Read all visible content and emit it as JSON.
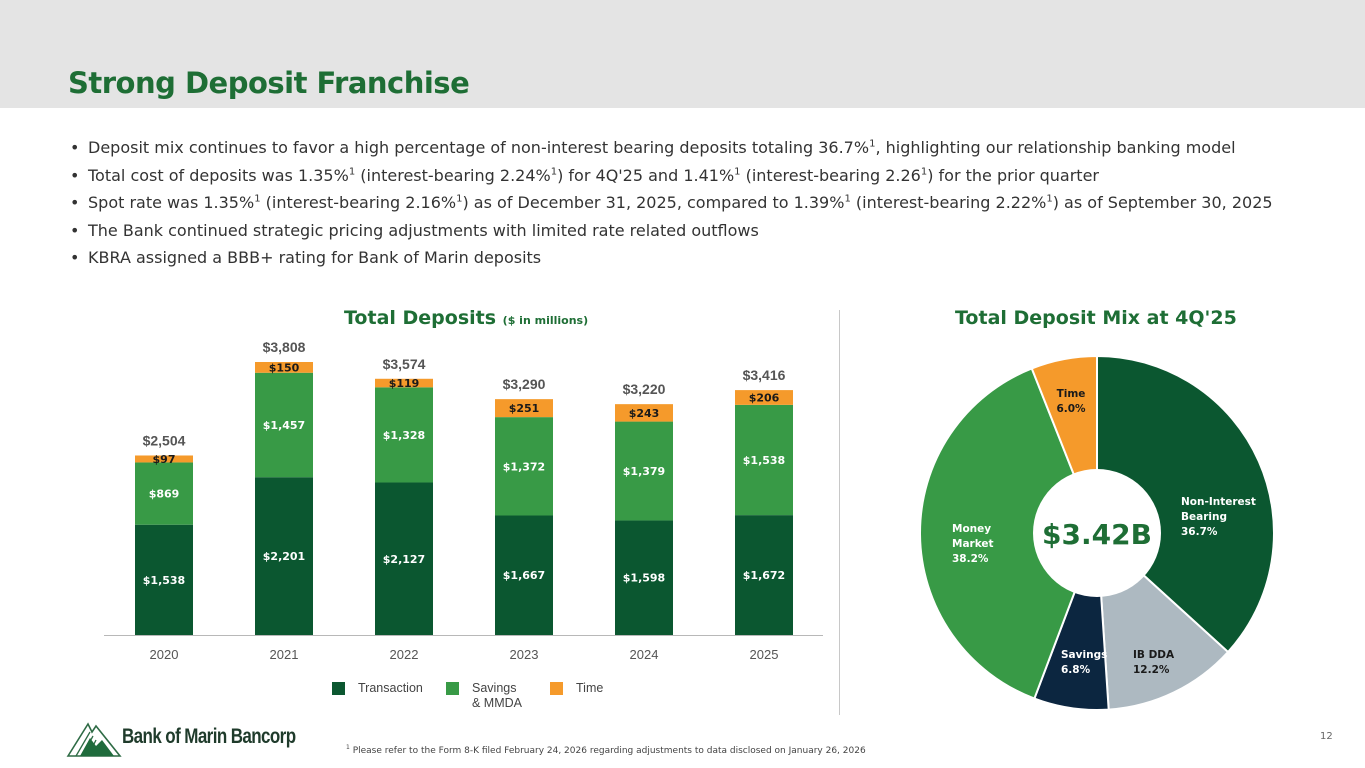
{
  "title": "Strong Deposit Franchise",
  "bullets": [
    [
      {
        "t": "Deposit mix continues to favor a high percentage of non-interest bearing deposits totaling 36.7%"
      },
      {
        "s": "1"
      },
      {
        "t": ", highlighting our relationship banking model"
      }
    ],
    [
      {
        "t": "Total cost of deposits was 1.35%"
      },
      {
        "s": "1"
      },
      {
        "t": " (interest-bearing 2.24%"
      },
      {
        "s": "1"
      },
      {
        "t": ") for 4Q'25 and 1.41%"
      },
      {
        "s": "1"
      },
      {
        "t": " (interest-bearing 2.26"
      },
      {
        "s": "1"
      },
      {
        "t": ") for the prior quarter"
      }
    ],
    [
      {
        "t": "Spot rate was 1.35%"
      },
      {
        "s": "1"
      },
      {
        "t": " (interest-bearing 2.16%"
      },
      {
        "s": "1"
      },
      {
        "t": ") as of December 31, 2025, compared to 1.39%"
      },
      {
        "s": "1"
      },
      {
        "t": " (interest-bearing 2.22%"
      },
      {
        "s": "1"
      },
      {
        "t": ") as of September 30, 2025"
      }
    ],
    [
      {
        "t": "The Bank continued strategic pricing adjustments with limited rate related outflows"
      }
    ],
    [
      {
        "t": "KBRA assigned a BBB+ rating for Bank of Marin deposits"
      }
    ]
  ],
  "bar_chart_title": "Total Deposits",
  "bar_chart_subtitle": "($ in millions)",
  "pie_chart_title": "Total Deposit Mix at 4Q'25",
  "colors": {
    "title_green": "#1e6e35",
    "transaction": "#0b5730",
    "savings_mmda": "#389a46",
    "time": "#f59a2b",
    "ib_dda": "#adb9c1",
    "savings": "#0c2640"
  },
  "chart_data": [
    {
      "type": "bar",
      "stacked": true,
      "title": "Total Deposits ($ in millions)",
      "categories": [
        "2020",
        "2021",
        "2022",
        "2023",
        "2024",
        "2025"
      ],
      "series": [
        {
          "name": "Transaction",
          "color": "#0b5730",
          "values": [
            1538,
            2201,
            2127,
            1667,
            1598,
            1672
          ],
          "labels": [
            "$1,538",
            "$2,201",
            "$2,127",
            "$1,667",
            "$1,598",
            "$1,672"
          ]
        },
        {
          "name": "Savings\n& MMDA",
          "color": "#389a46",
          "values": [
            869,
            1457,
            1328,
            1372,
            1379,
            1538
          ],
          "labels": [
            "$869",
            "$1,457",
            "$1,328",
            "$1,372",
            "$1,379",
            "$1,538"
          ]
        },
        {
          "name": "Time",
          "color": "#f59a2b",
          "values": [
            97,
            150,
            119,
            251,
            243,
            206
          ],
          "labels": [
            "$97",
            "$150",
            "$119",
            "$251",
            "$243",
            "$206"
          ]
        }
      ],
      "totals": [
        2504,
        3808,
        3574,
        3290,
        3220,
        3416
      ],
      "total_labels": [
        "$2,504",
        "$3,808",
        "$3,574",
        "$3,290",
        "$3,220",
        "$3,416"
      ],
      "ylim": [
        0,
        3808
      ],
      "xlabel": "",
      "ylabel": "",
      "grid": false,
      "legend": "bottom"
    },
    {
      "type": "pie",
      "donut": true,
      "title": "Total Deposit Mix at 4Q'25",
      "center_label": "$3.42B",
      "slices": [
        {
          "name": "Non-Interest Bearing",
          "value": 36.7,
          "label_lines": [
            "Non-Interest",
            "Bearing",
            "36.7%"
          ],
          "color": "#0b5730"
        },
        {
          "name": "IB DDA",
          "value": 12.2,
          "label_lines": [
            "IB DDA",
            "12.2%"
          ],
          "color": "#adb9c1"
        },
        {
          "name": "Savings",
          "value": 6.8,
          "label_lines": [
            "Savings",
            "6.8%"
          ],
          "color": "#0c2640"
        },
        {
          "name": "Money Market",
          "value": 38.2,
          "label_lines": [
            "Money",
            "Market",
            "38.2%"
          ],
          "color": "#389a46"
        },
        {
          "name": "Time",
          "value": 6.0,
          "label_lines": [
            "Time",
            "6.0%"
          ],
          "color": "#f59a2b"
        }
      ]
    }
  ],
  "logo_text": "Bank of Marin Bancorp",
  "footnote": {
    "sup": "1",
    "text": " Please refer to the Form 8-K filed February 24, 2026 regarding adjustments to data disclosed on January 26, 2026"
  },
  "page_number": "12"
}
